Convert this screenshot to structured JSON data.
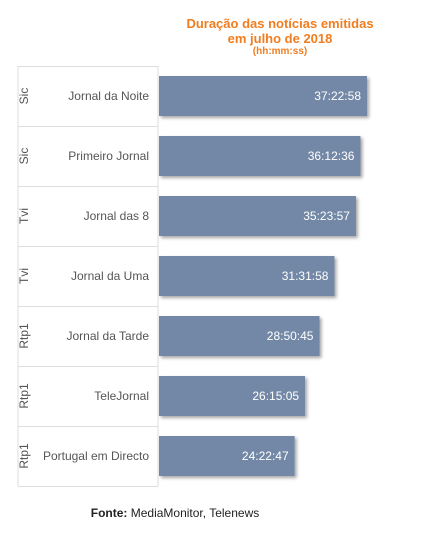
{
  "title_line1": "Duração das notícias emitidas",
  "title_line2": "em julho de 2018",
  "title_units": "(hh:mm:ss)",
  "source_label": "Fonte:",
  "source_text": "MediaMonitor, Telenews",
  "colors": {
    "bar": "#7388a6",
    "title": "#f07d1f",
    "grid": "#dddddd",
    "label": "#555555"
  },
  "chart_data": {
    "type": "bar",
    "orientation": "horizontal",
    "groups": [
      "Sic",
      "Sic",
      "Tvi",
      "Tvi",
      "Rtp1",
      "Rtp1",
      "Rtp1"
    ],
    "categories": [
      "Jornal da Noite",
      "Primeiro Jornal",
      "Jornal das 8",
      "Jornal da Uma",
      "Jornal da Tarde",
      "TeleJornal",
      "Portugal em Directo"
    ],
    "value_labels": [
      "37:22:58",
      "36:12:36",
      "35:23:57",
      "31:31:58",
      "28:50:45",
      "26:15:05",
      "24:22:47"
    ],
    "values_seconds": [
      134578,
      130356,
      127437,
      113518,
      103845,
      94505,
      87767
    ]
  }
}
